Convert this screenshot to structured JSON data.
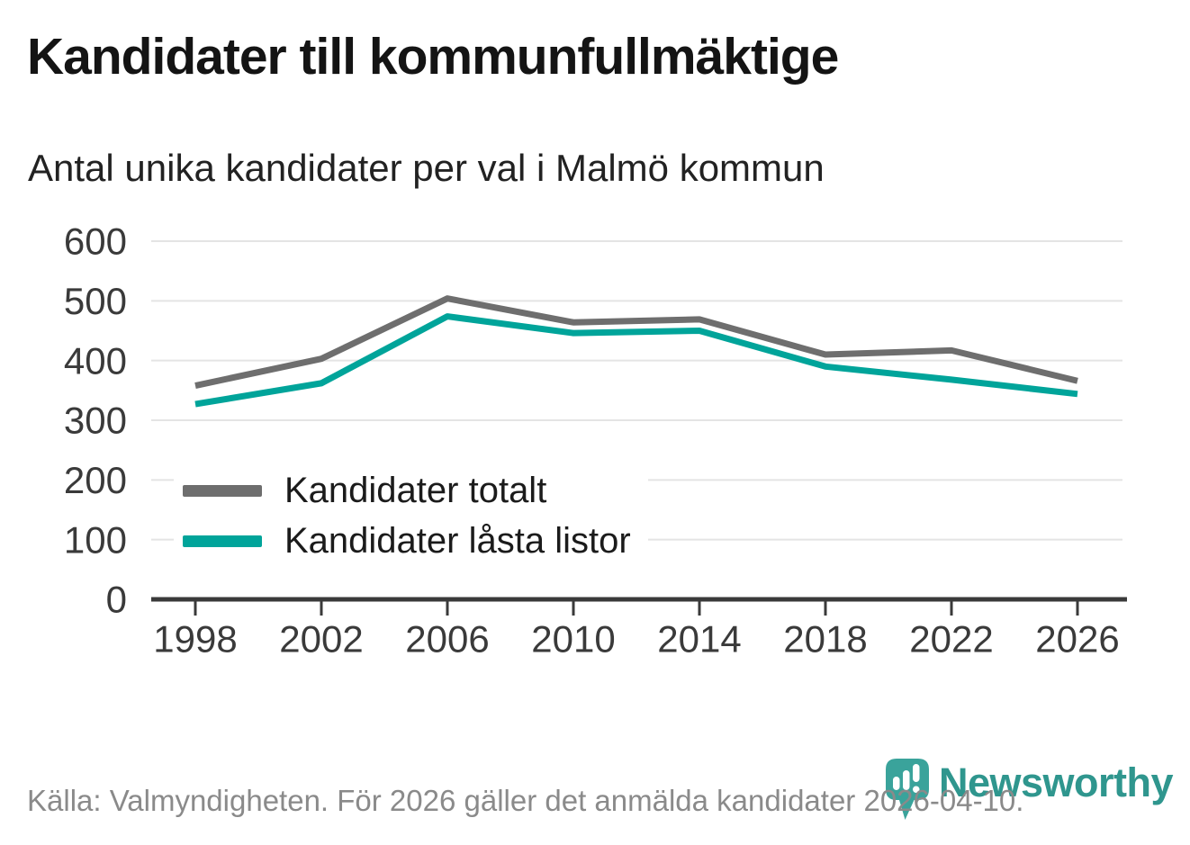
{
  "header": {
    "title": "Kandidater till kommunfullmäktige",
    "subtitle": "Antal unika kandidater per val i Malmö kommun"
  },
  "chart_data": {
    "type": "line",
    "categories": [
      "1998",
      "2002",
      "2006",
      "2010",
      "2014",
      "2018",
      "2022",
      "2026"
    ],
    "series": [
      {
        "name": "Kandidater totalt",
        "color": "#6e6e6e",
        "values": [
          358,
          403,
          504,
          464,
          469,
          410,
          417,
          366
        ]
      },
      {
        "name": "Kandidater låsta listor",
        "color": "#00a49a",
        "values": [
          327,
          362,
          474,
          446,
          450,
          390,
          368,
          344
        ]
      }
    ],
    "title": "Kandidater till kommunfullmäktige",
    "subtitle": "Antal unika kandidater per val i Malmö kommun",
    "xlabel": "",
    "ylabel": "",
    "ylim": [
      0,
      600
    ],
    "yticks": [
      0,
      100,
      200,
      300,
      400,
      500,
      600
    ],
    "grid": "horizontal",
    "legend_position": "inside-left",
    "gridline_color": "#e4e4e4",
    "axis_color": "#3a3a3a",
    "tick_label_color": "#3a3a3a"
  },
  "footer": {
    "source": "Källa: Valmyndigheten. För 2026 gäller det anmälda kandidater 2026-04-10."
  },
  "branding": {
    "name": "Newsworthy",
    "icon": "newsworthy-pin-barchart-icon",
    "icon_color": "#3aa39b",
    "text_color": "#2f968e"
  }
}
